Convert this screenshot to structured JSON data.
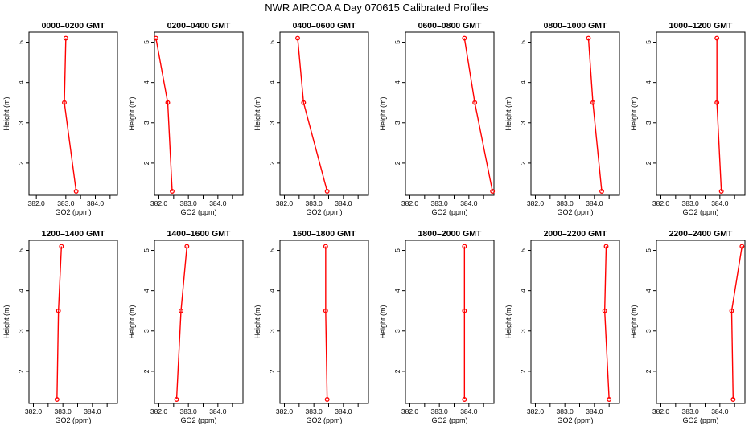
{
  "title": "NWR AIRCOA A  Day 070615  Calibrated Profiles",
  "colors": {
    "series": "#ff0000",
    "axis": "#000000",
    "background": "#ffffff"
  },
  "chart_data": [
    {
      "type": "line",
      "title": "0000–0200 GMT",
      "xlabel": "GO2 (ppm)",
      "ylabel": "Height (m)",
      "xticks": [
        "382.0",
        "383.0",
        "384.0"
      ],
      "yticks": [
        "2",
        "3",
        "4",
        "5"
      ],
      "xlim": [
        381.75,
        384.75
      ],
      "ylim": [
        1.2,
        5.25
      ],
      "grid": false,
      "points": [
        {
          "x": 383.0,
          "y": 5.1
        },
        {
          "x": 382.95,
          "y": 3.5
        },
        {
          "x": 383.35,
          "y": 1.3
        }
      ]
    },
    {
      "type": "line",
      "title": "0200–0400 GMT",
      "xlabel": "GO2 (ppm)",
      "ylabel": "Height (m)",
      "xticks": [
        "382.0",
        "383.0",
        "384.0"
      ],
      "yticks": [
        "2",
        "3",
        "4",
        "5"
      ],
      "xlim": [
        381.85,
        384.85
      ],
      "ylim": [
        1.2,
        5.25
      ],
      "grid": false,
      "points": [
        {
          "x": 381.9,
          "y": 5.1
        },
        {
          "x": 382.3,
          "y": 3.5
        },
        {
          "x": 382.45,
          "y": 1.3
        }
      ]
    },
    {
      "type": "line",
      "title": "0400–0600 GMT",
      "xlabel": "GO2 (ppm)",
      "ylabel": "Height (m)",
      "xticks": [
        "382.0",
        "383.0",
        "384.0"
      ],
      "yticks": [
        "2",
        "3",
        "4",
        "5"
      ],
      "xlim": [
        381.85,
        384.85
      ],
      "ylim": [
        1.2,
        5.25
      ],
      "grid": false,
      "points": [
        {
          "x": 382.45,
          "y": 5.1
        },
        {
          "x": 382.65,
          "y": 3.5
        },
        {
          "x": 383.45,
          "y": 1.3
        }
      ]
    },
    {
      "type": "line",
      "title": "0600–0800 GMT",
      "xlabel": "GO2 (ppm)",
      "ylabel": "Height (m)",
      "xticks": [
        "382.0",
        "383.0",
        "384.0"
      ],
      "yticks": [
        "2",
        "3",
        "4",
        "5"
      ],
      "xlim": [
        381.85,
        384.85
      ],
      "ylim": [
        1.2,
        5.25
      ],
      "grid": false,
      "points": [
        {
          "x": 383.85,
          "y": 5.1
        },
        {
          "x": 384.2,
          "y": 3.5
        },
        {
          "x": 384.8,
          "y": 1.3
        }
      ]
    },
    {
      "type": "line",
      "title": "0800–1000 GMT",
      "xlabel": "GO2 (ppm)",
      "ylabel": "Height (m)",
      "xticks": [
        "382.0",
        "383.0",
        "384.0"
      ],
      "yticks": [
        "2",
        "3",
        "4",
        "5"
      ],
      "xlim": [
        381.85,
        384.85
      ],
      "ylim": [
        1.2,
        5.25
      ],
      "grid": false,
      "points": [
        {
          "x": 383.8,
          "y": 5.1
        },
        {
          "x": 383.95,
          "y": 3.5
        },
        {
          "x": 384.25,
          "y": 1.3
        }
      ]
    },
    {
      "type": "line",
      "title": "1000–1200 GMT",
      "xlabel": "GO2 (ppm)",
      "ylabel": "Height (m)",
      "xticks": [
        "382.0",
        "383.0",
        "384.0"
      ],
      "yticks": [
        "2",
        "3",
        "4",
        "5"
      ],
      "xlim": [
        381.85,
        384.85
      ],
      "ylim": [
        1.2,
        5.25
      ],
      "grid": false,
      "points": [
        {
          "x": 383.9,
          "y": 5.1
        },
        {
          "x": 383.9,
          "y": 3.5
        },
        {
          "x": 384.05,
          "y": 1.3
        }
      ]
    },
    {
      "type": "line",
      "title": "1200–1400 GMT",
      "xlabel": "GO2 (ppm)",
      "ylabel": "Height (m)",
      "xticks": [
        "382.0",
        "383.0",
        "384.0"
      ],
      "yticks": [
        "2",
        "3",
        "4",
        "5"
      ],
      "xlim": [
        381.85,
        384.85
      ],
      "ylim": [
        1.2,
        5.25
      ],
      "grid": false,
      "points": [
        {
          "x": 382.95,
          "y": 5.1
        },
        {
          "x": 382.85,
          "y": 3.5
        },
        {
          "x": 382.8,
          "y": 1.3
        }
      ]
    },
    {
      "type": "line",
      "title": "1400–1600 GMT",
      "xlabel": "GO2 (ppm)",
      "ylabel": "Height (m)",
      "xticks": [
        "382.0",
        "383.0",
        "384.0"
      ],
      "yticks": [
        "2",
        "3",
        "4",
        "5"
      ],
      "xlim": [
        381.85,
        384.85
      ],
      "ylim": [
        1.2,
        5.25
      ],
      "grid": false,
      "points": [
        {
          "x": 382.95,
          "y": 5.1
        },
        {
          "x": 382.75,
          "y": 3.5
        },
        {
          "x": 382.6,
          "y": 1.3
        }
      ]
    },
    {
      "type": "line",
      "title": "1600–1800 GMT",
      "xlabel": "GO2 (ppm)",
      "ylabel": "Height (m)",
      "xticks": [
        "382.0",
        "383.0",
        "384.0"
      ],
      "yticks": [
        "2",
        "3",
        "4",
        "5"
      ],
      "xlim": [
        381.85,
        384.85
      ],
      "ylim": [
        1.2,
        5.25
      ],
      "grid": false,
      "points": [
        {
          "x": 383.4,
          "y": 5.1
        },
        {
          "x": 383.4,
          "y": 3.5
        },
        {
          "x": 383.45,
          "y": 1.3
        }
      ]
    },
    {
      "type": "line",
      "title": "1800–2000 GMT",
      "xlabel": "GO2 (ppm)",
      "ylabel": "Height (m)",
      "xticks": [
        "382.0",
        "383.0",
        "384.0"
      ],
      "yticks": [
        "2",
        "3",
        "4",
        "5"
      ],
      "xlim": [
        381.85,
        384.85
      ],
      "ylim": [
        1.2,
        5.25
      ],
      "grid": false,
      "points": [
        {
          "x": 383.85,
          "y": 5.1
        },
        {
          "x": 383.85,
          "y": 3.5
        },
        {
          "x": 383.85,
          "y": 1.3
        }
      ]
    },
    {
      "type": "line",
      "title": "2000–2200 GMT",
      "xlabel": "GO2 (ppm)",
      "ylabel": "Height (m)",
      "xticks": [
        "382.0",
        "383.0",
        "384.0"
      ],
      "yticks": [
        "2",
        "3",
        "4",
        "5"
      ],
      "xlim": [
        381.85,
        384.85
      ],
      "ylim": [
        1.2,
        5.25
      ],
      "grid": false,
      "points": [
        {
          "x": 384.4,
          "y": 5.1
        },
        {
          "x": 384.35,
          "y": 3.5
        },
        {
          "x": 384.5,
          "y": 1.3
        }
      ]
    },
    {
      "type": "line",
      "title": "2200–2400 GMT",
      "xlabel": "GO2 (ppm)",
      "ylabel": "Height (m)",
      "xticks": [
        "382.0",
        "383.0",
        "384.0"
      ],
      "yticks": [
        "2",
        "3",
        "4",
        "5"
      ],
      "xlim": [
        381.85,
        384.85
      ],
      "ylim": [
        1.2,
        5.25
      ],
      "grid": false,
      "points": [
        {
          "x": 384.75,
          "y": 5.1
        },
        {
          "x": 384.4,
          "y": 3.5
        },
        {
          "x": 384.45,
          "y": 1.3
        }
      ]
    }
  ]
}
